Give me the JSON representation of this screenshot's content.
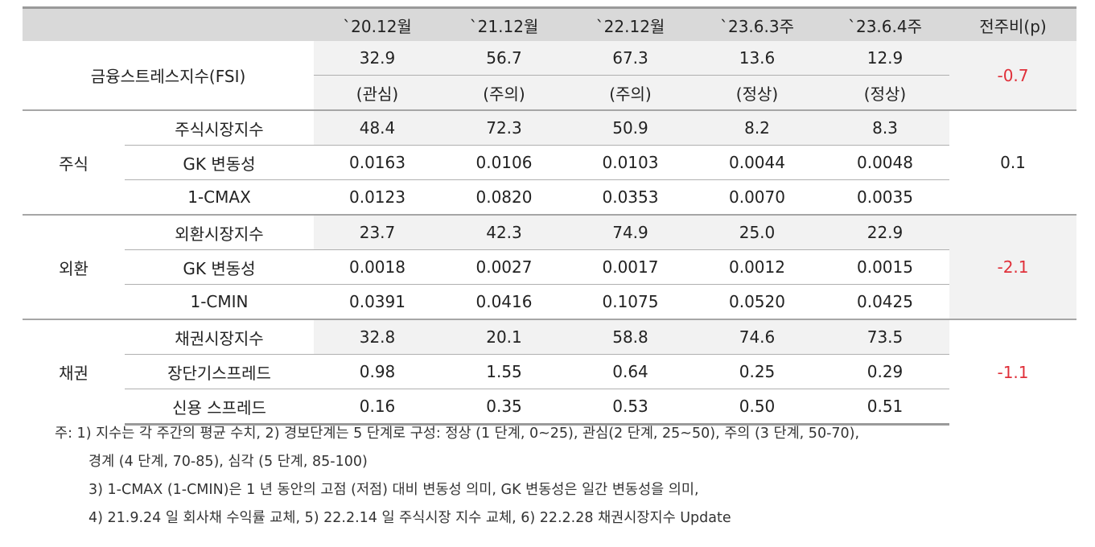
{
  "header": {
    "columns": [
      "`20.12월",
      "`21.12월",
      "`22.12월",
      "`23.6.3주",
      "`23.6.4주",
      "전주비(p)"
    ]
  },
  "table": {
    "fsi": {
      "label": "금융스트레스지수(FSI)",
      "values": [
        "32.9",
        "56.7",
        "67.3",
        "13.6",
        "12.9"
      ],
      "levels": [
        "(관심)",
        "(주의)",
        "(주의)",
        "(정상)",
        "(정상)"
      ],
      "change": "-0.7"
    },
    "sections": [
      {
        "group": "주식",
        "change": "0.1",
        "rows": [
          {
            "label": "주식시장지수",
            "values": [
              "48.4",
              "72.3",
              "50.9",
              "8.2",
              "8.3"
            ]
          },
          {
            "label": "GK 변동성",
            "values": [
              "0.0163",
              "0.0106",
              "0.0103",
              "0.0044",
              "0.0048"
            ]
          },
          {
            "label": "1-CMAX",
            "values": [
              "0.0123",
              "0.0820",
              "0.0353",
              "0.0070",
              "0.0035"
            ]
          }
        ]
      },
      {
        "group": "외환",
        "change": "-2.1",
        "rows": [
          {
            "label": "외환시장지수",
            "values": [
              "23.7",
              "42.3",
              "74.9",
              "25.0",
              "22.9"
            ]
          },
          {
            "label": "GK 변동성",
            "values": [
              "0.0018",
              "0.0027",
              "0.0017",
              "0.0012",
              "0.0015"
            ]
          },
          {
            "label": "1-CMIN",
            "values": [
              "0.0391",
              "0.0416",
              "0.1075",
              "0.0520",
              "0.0425"
            ]
          }
        ]
      },
      {
        "group": "채권",
        "change": "-1.1",
        "rows": [
          {
            "label": "채권시장지수",
            "values": [
              "32.8",
              "20.1",
              "58.8",
              "74.6",
              "73.5"
            ]
          },
          {
            "label": "장단기스프레드",
            "values": [
              "0.98",
              "1.55",
              "0.64",
              "0.25",
              "0.29"
            ]
          },
          {
            "label": "신용 스프레드",
            "values": [
              "0.16",
              "0.35",
              "0.53",
              "0.50",
              "0.51"
            ]
          }
        ]
      }
    ]
  },
  "notes": [
    "주: 1) 지수는 각 주간의 평균 수치, 2) 경보단계는 5 단계로 구성: 정상 (1 단계, 0~25), 관심(2 단계, 25~50), 주의 (3 단계, 50-70),",
    "경계 (4 단계, 70-85), 심각 (5 단계, 85-100)",
    "3) 1-CMAX (1-CMIN)은 1 년 동안의 고점 (저점) 대비 변동성 의미, GK 변동성은 일간 변동성을 의미,",
    "4) 21.9.24 일 회사채 수익률 교체, 5) 22.2.14 일 주식시장 지수 교체, 6) 22.2.28 채권시장지수 Update"
  ]
}
